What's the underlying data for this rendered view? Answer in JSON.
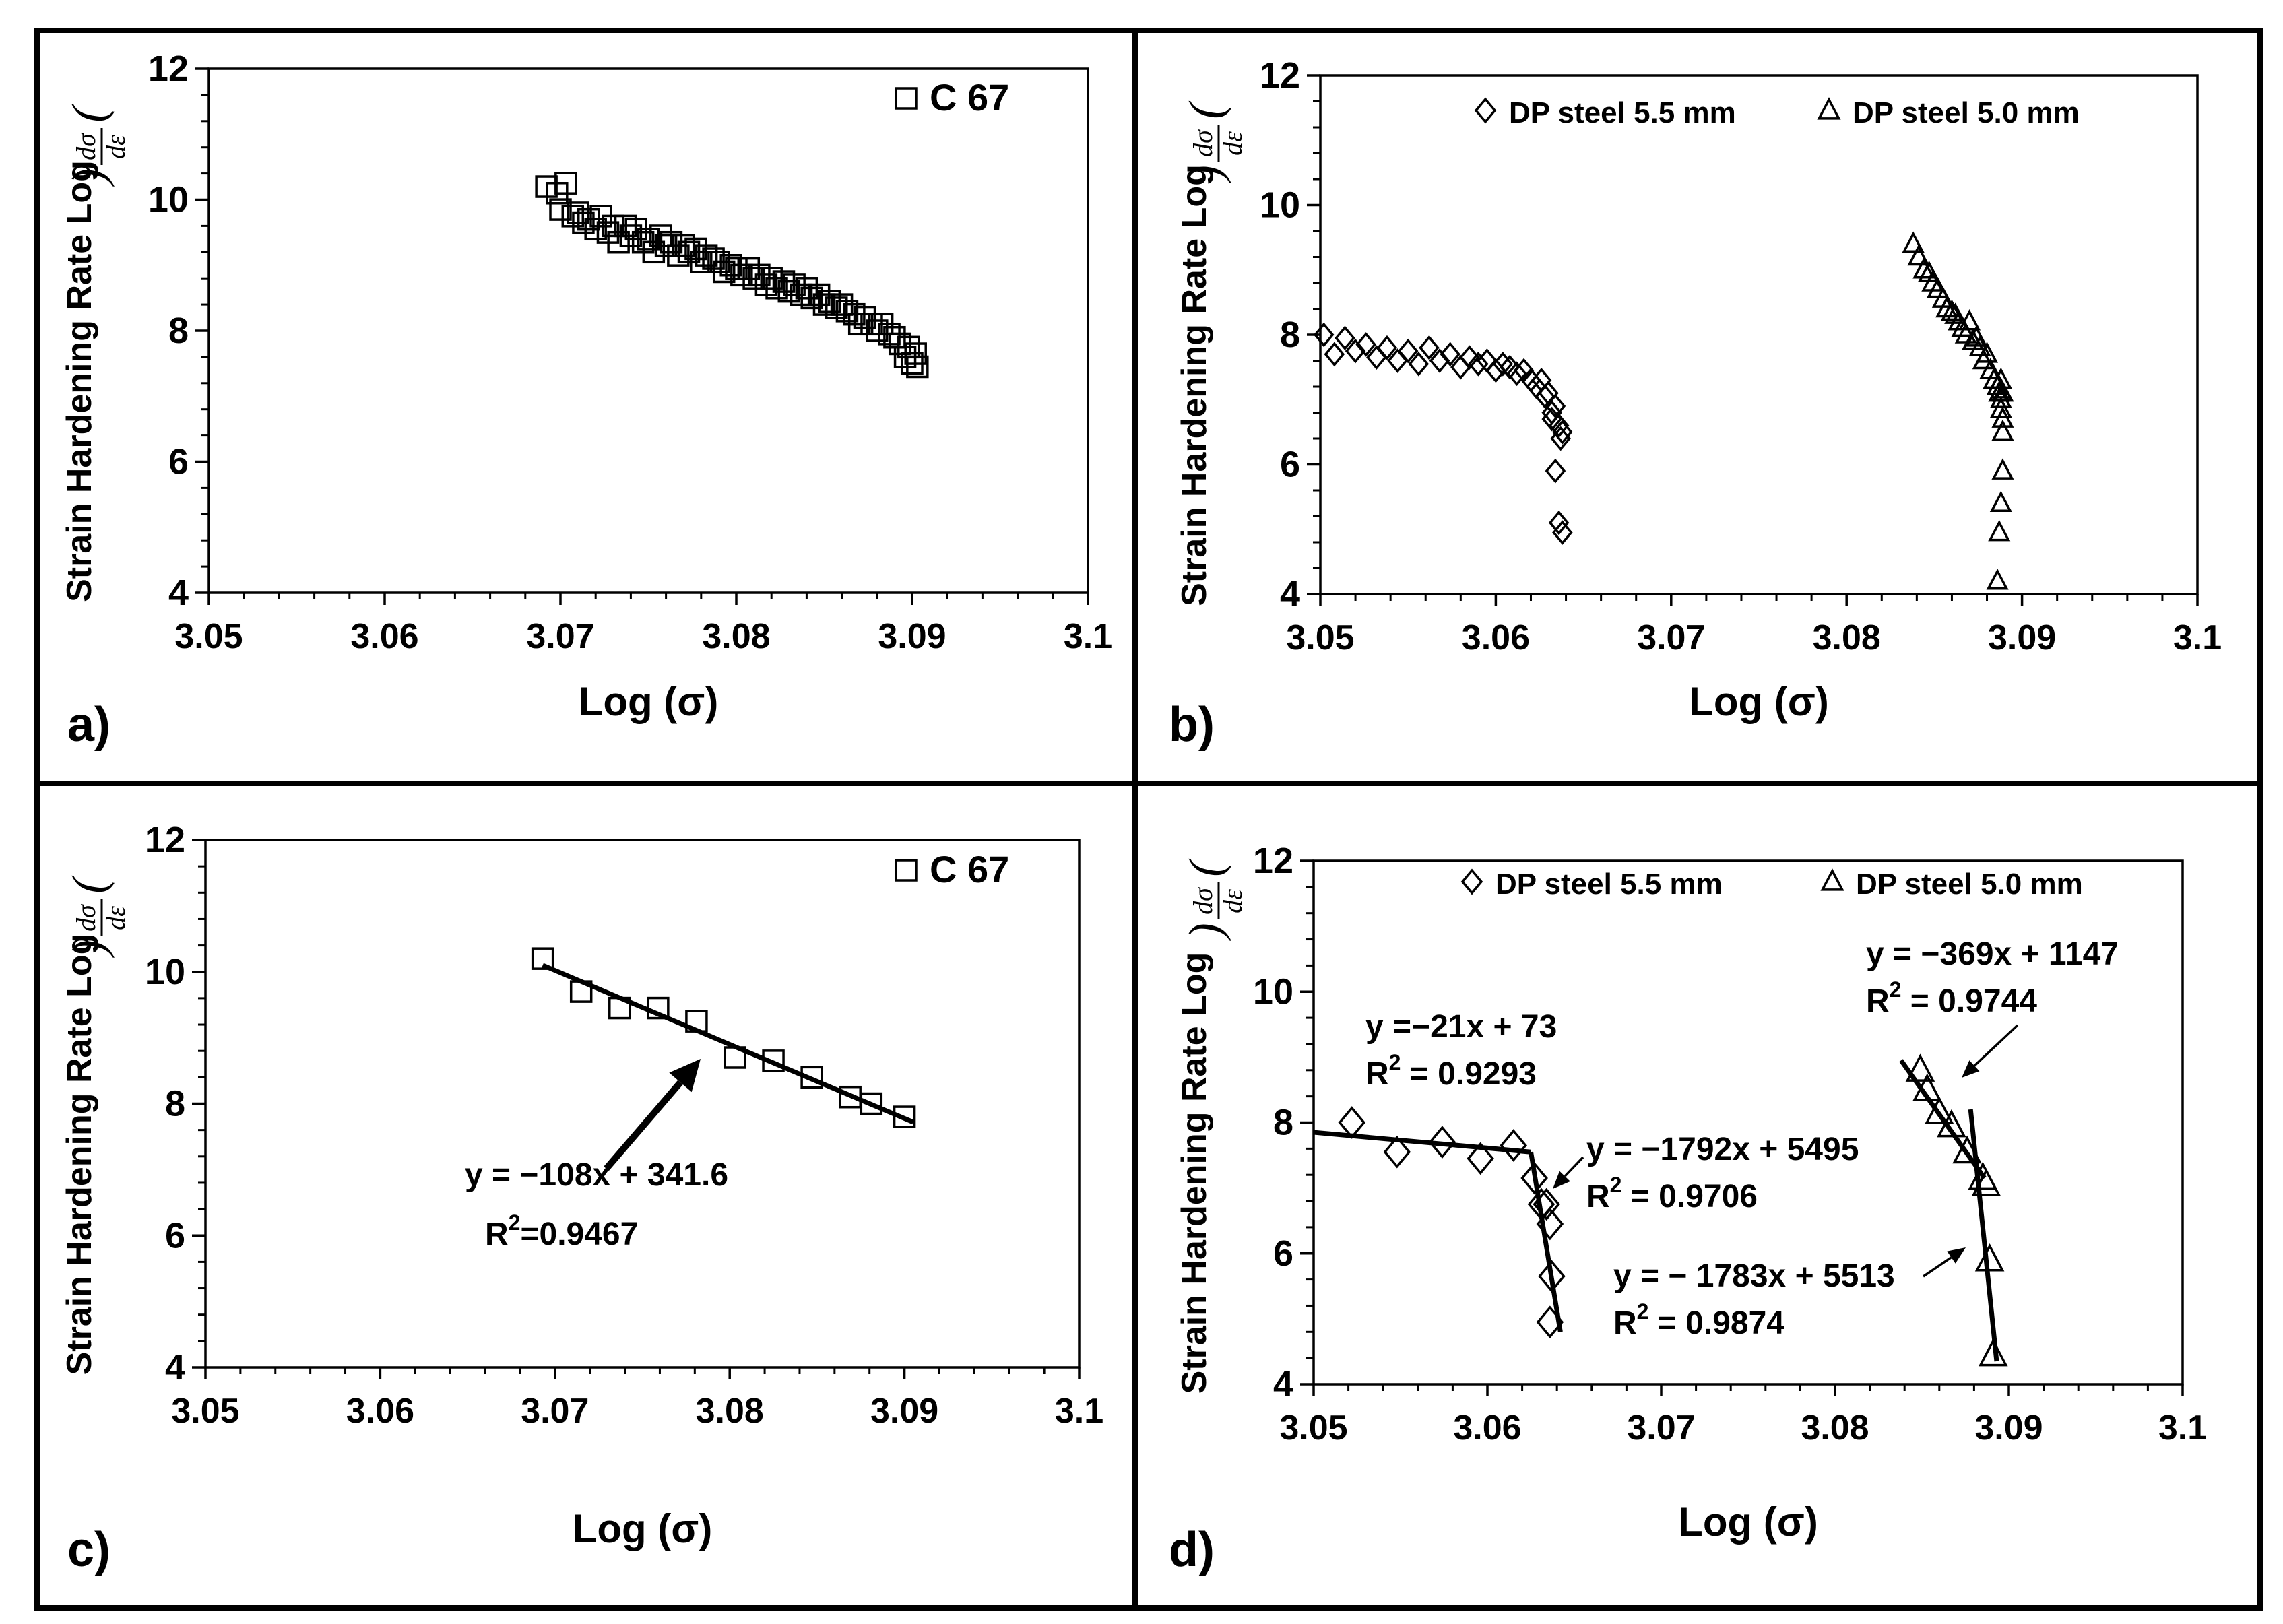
{
  "chart_data": [
    {
      "panel": "a)",
      "type": "scatter",
      "ylabel": "Strain Hardening Rate Log",
      "ylabel_fraction": {
        "num": "dσ",
        "den": "dε"
      },
      "xlabel": "Log (σ)",
      "xlim": [
        3.05,
        3.1
      ],
      "ylim": [
        4,
        12
      ],
      "xticks": [
        "3.05",
        "3.06",
        "3.07",
        "3.08",
        "3.09",
        "3.1"
      ],
      "yticks": [
        "4",
        "6",
        "8",
        "10",
        "12"
      ],
      "legend": [
        {
          "marker": "square",
          "label": "C 67"
        }
      ],
      "series": [
        {
          "name": "C 67",
          "marker": "square",
          "x": [
            3.0692,
            3.0698,
            3.07,
            3.0703,
            3.0707,
            3.071,
            3.0713,
            3.0716,
            3.072,
            3.0723,
            3.0727,
            3.073,
            3.0733,
            3.0737,
            3.074,
            3.0743,
            3.0747,
            3.075,
            3.0753,
            3.0757,
            3.076,
            3.0763,
            3.0767,
            3.077,
            3.0773,
            3.0777,
            3.078,
            3.0783,
            3.0787,
            3.079,
            3.0793,
            3.0797,
            3.08,
            3.0803,
            3.0807,
            3.081,
            3.0813,
            3.0817,
            3.082,
            3.0823,
            3.0827,
            3.083,
            3.0833,
            3.0837,
            3.084,
            3.0843,
            3.0847,
            3.085,
            3.0853,
            3.0857,
            3.086,
            3.0863,
            3.0867,
            3.087,
            3.0873,
            3.0877,
            3.088,
            3.0883,
            3.0887,
            3.089,
            3.0893,
            3.0896,
            3.0898,
            3.09,
            3.0902,
            3.0903
          ],
          "y": [
            10.2,
            10.1,
            9.85,
            10.25,
            9.75,
            9.8,
            9.65,
            9.7,
            9.55,
            9.75,
            9.5,
            9.6,
            9.35,
            9.6,
            9.45,
            9.55,
            9.35,
            9.4,
            9.2,
            9.45,
            9.3,
            9.35,
            9.15,
            9.3,
            9.2,
            9.25,
            9.05,
            9.15,
            9.1,
            9.05,
            8.9,
            9.0,
            8.95,
            8.85,
            8.95,
            8.8,
            8.85,
            8.7,
            8.8,
            8.65,
            8.75,
            8.6,
            8.7,
            8.55,
            8.65,
            8.5,
            8.55,
            8.4,
            8.45,
            8.35,
            8.4,
            8.3,
            8.25,
            8.1,
            8.2,
            8.1,
            8.0,
            8.1,
            7.95,
            7.9,
            7.8,
            7.6,
            7.75,
            7.5,
            7.65,
            7.45
          ]
        }
      ]
    },
    {
      "panel": "b)",
      "type": "scatter",
      "ylabel": "Strain Hardening Rate  Log",
      "ylabel_fraction": {
        "num": "dσ",
        "den": "dε"
      },
      "xlabel": "Log (σ)",
      "xlim": [
        3.05,
        3.1
      ],
      "ylim": [
        4,
        12
      ],
      "xticks": [
        "3.05",
        "3.06",
        "3.07",
        "3.08",
        "3.09",
        "3.1"
      ],
      "yticks": [
        "4",
        "6",
        "8",
        "10",
        "12"
      ],
      "legend": [
        {
          "marker": "diamond",
          "label": "DP steel 5.5 mm"
        },
        {
          "marker": "triangle",
          "label": "DP steel 5.0 mm"
        }
      ],
      "series": [
        {
          "name": "DP steel 5.5 mm",
          "marker": "diamond",
          "x": [
            3.0502,
            3.0508,
            3.0514,
            3.052,
            3.0526,
            3.0532,
            3.0538,
            3.0544,
            3.055,
            3.0556,
            3.0562,
            3.0568,
            3.0574,
            3.058,
            3.0585,
            3.059,
            3.0595,
            3.06,
            3.0604,
            3.0608,
            3.0612,
            3.0616,
            3.062,
            3.0623,
            3.0626,
            3.0628,
            3.063,
            3.0632,
            3.0634,
            3.0636,
            3.0637,
            3.0638,
            3.0634,
            3.0632,
            3.0636,
            3.0638
          ],
          "y": [
            8.0,
            7.7,
            7.95,
            7.75,
            7.85,
            7.65,
            7.8,
            7.6,
            7.75,
            7.55,
            7.8,
            7.6,
            7.7,
            7.5,
            7.65,
            7.55,
            7.6,
            7.45,
            7.55,
            7.5,
            7.4,
            7.45,
            7.3,
            7.2,
            7.3,
            7.05,
            7.1,
            6.8,
            6.9,
            6.6,
            6.4,
            6.5,
            5.9,
            6.7,
            5.1,
            4.95
          ]
        },
        {
          "name": "DP steel 5.0 mm",
          "marker": "triangle",
          "x": [
            3.0838,
            3.0841,
            3.0844,
            3.0847,
            3.0849,
            3.0852,
            3.0855,
            3.0857,
            3.086,
            3.0862,
            3.0864,
            3.0866,
            3.0868,
            3.087,
            3.0872,
            3.0874,
            3.0876,
            3.0878,
            3.088,
            3.0882,
            3.0884,
            3.0886,
            3.0887,
            3.0888,
            3.0888,
            3.0889,
            3.0889,
            3.0888,
            3.0889,
            3.0888,
            3.0887,
            3.0886,
            3.0888,
            3.0889
          ],
          "y": [
            9.4,
            9.2,
            9.0,
            8.95,
            8.8,
            8.7,
            8.55,
            8.4,
            8.35,
            8.3,
            8.2,
            8.1,
            8.0,
            8.2,
            7.9,
            7.95,
            7.8,
            7.6,
            7.7,
            7.45,
            7.3,
            7.2,
            7.1,
            7.15,
            6.85,
            6.7,
            6.5,
            7.3,
            5.9,
            5.4,
            4.95,
            4.2,
            7.0,
            7.1
          ]
        }
      ]
    },
    {
      "panel": "c)",
      "type": "scatter",
      "ylabel": "Strain Hardening Rate Log",
      "ylabel_fraction": {
        "num": "dσ",
        "den": "dε"
      },
      "xlabel": "Log (σ)",
      "xlim": [
        3.05,
        3.1
      ],
      "ylim": [
        4,
        12
      ],
      "xticks": [
        "3.05",
        "3.06",
        "3.07",
        "3.08",
        "3.09",
        "3.1"
      ],
      "yticks": [
        "4",
        "6",
        "8",
        "10",
        "12"
      ],
      "legend": [
        {
          "marker": "square",
          "label": "C 67"
        }
      ],
      "series": [
        {
          "name": "C 67",
          "marker": "square",
          "x": [
            3.0693,
            3.0715,
            3.0737,
            3.0759,
            3.0781,
            3.0803,
            3.0825,
            3.0847,
            3.0869,
            3.0881,
            3.09
          ],
          "y": [
            10.2,
            9.7,
            9.45,
            9.45,
            9.25,
            8.7,
            8.65,
            8.4,
            8.1,
            8.0,
            7.8
          ]
        }
      ],
      "fits": [
        {
          "x": [
            3.0693,
            3.0905
          ],
          "y": [
            10.1,
            7.72
          ],
          "equation": "y = −108x + 341.6",
          "r2": "R",
          "r2_value": "=0.9467",
          "sup": "2"
        }
      ]
    },
    {
      "panel": "d)",
      "type": "scatter",
      "ylabel": "Strain Hardening Rate  Log",
      "ylabel_fraction": {
        "num": "dσ",
        "den": "dε"
      },
      "xlabel": "Log (σ)",
      "xlim": [
        3.05,
        3.1
      ],
      "ylim": [
        4,
        12
      ],
      "xticks": [
        "3.05",
        "3.06",
        "3.07",
        "3.08",
        "3.09",
        "3.1"
      ],
      "yticks": [
        "4",
        "6",
        "8",
        "10",
        "12"
      ],
      "legend": [
        {
          "marker": "diamond",
          "label": "DP steel 5.5 mm"
        },
        {
          "marker": "triangle",
          "label": "DP steel 5.0 mm"
        }
      ],
      "series": [
        {
          "name": "DP steel 5.5 mm",
          "marker": "diamond",
          "x": [
            3.0522,
            3.0548,
            3.0574,
            3.0596,
            3.0615,
            3.0627,
            3.0631,
            3.0634,
            3.0636,
            3.0637,
            3.0636
          ],
          "y": [
            8.0,
            7.55,
            7.7,
            7.45,
            7.65,
            7.15,
            6.75,
            6.75,
            6.45,
            5.65,
            4.95
          ]
        },
        {
          "name": "DP steel 5.0 mm",
          "marker": "triangle",
          "x": [
            3.0849,
            3.0853,
            3.086,
            3.0867,
            3.0876,
            3.0885,
            3.0887,
            3.0889,
            3.0891
          ],
          "y": [
            8.8,
            8.5,
            8.15,
            7.95,
            7.55,
            7.15,
            7.05,
            5.9,
            4.45
          ]
        }
      ],
      "fits": [
        {
          "x": [
            3.05,
            3.0625
          ],
          "y": [
            7.85,
            7.55
          ],
          "equation": "y =−21x + 73",
          "r2": "R",
          "r2_value": " = 0.9293",
          "sup": "2"
        },
        {
          "x": [
            3.0625,
            3.0642
          ],
          "y": [
            7.55,
            4.8
          ],
          "equation": "y = −1792x + 5495",
          "r2": "R",
          "r2_value": " = 0.9706",
          "sup": "2"
        },
        {
          "x": [
            3.0838,
            3.0886
          ],
          "y": [
            8.95,
            7.15
          ],
          "equation": "y = −369x + 1147",
          "r2": "R",
          "r2_value": " = 0.9744",
          "sup": "2"
        },
        {
          "x": [
            3.0878,
            3.0893
          ],
          "y": [
            8.2,
            4.35
          ],
          "equation": "y = − 1783x + 5513",
          "r2": "R",
          "r2_value": " = 0.9874",
          "sup": "2"
        }
      ]
    }
  ]
}
